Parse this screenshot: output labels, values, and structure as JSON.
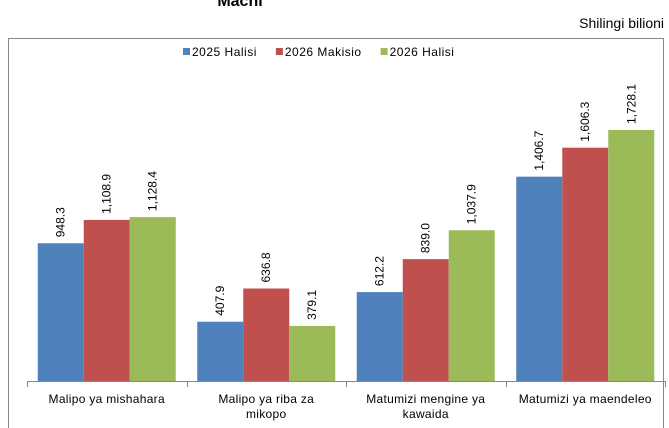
{
  "chart_data": {
    "type": "bar",
    "title": "Machi",
    "unit": "Shilingi bilioni",
    "categories": [
      "Malipo ya mishahara",
      "Malipo ya riba za mikopo",
      "Matumizi mengine ya kawaida",
      "Matumizi ya maendeleo"
    ],
    "series": [
      {
        "name": "2025 Halisi",
        "color": "#4f81bd",
        "values": [
          948.3,
          407.9,
          612.2,
          1406.7
        ],
        "value_labels": [
          "948.3",
          "407.9",
          "612.2",
          "1,406.7"
        ]
      },
      {
        "name": "2026 Makisio",
        "color": "#c0504d",
        "values": [
          1108.9,
          636.8,
          839.0,
          1606.3
        ],
        "value_labels": [
          "1,108.9",
          "636.8",
          "839.0",
          "1,606.3"
        ]
      },
      {
        "name": "2026 Halisi",
        "color": "#9bbb59",
        "values": [
          1128.4,
          379.1,
          1037.9,
          1728.1
        ],
        "value_labels": [
          "1,128.4",
          "379.1",
          "1,037.9",
          "1,728.1"
        ]
      }
    ],
    "legend": "top"
  }
}
